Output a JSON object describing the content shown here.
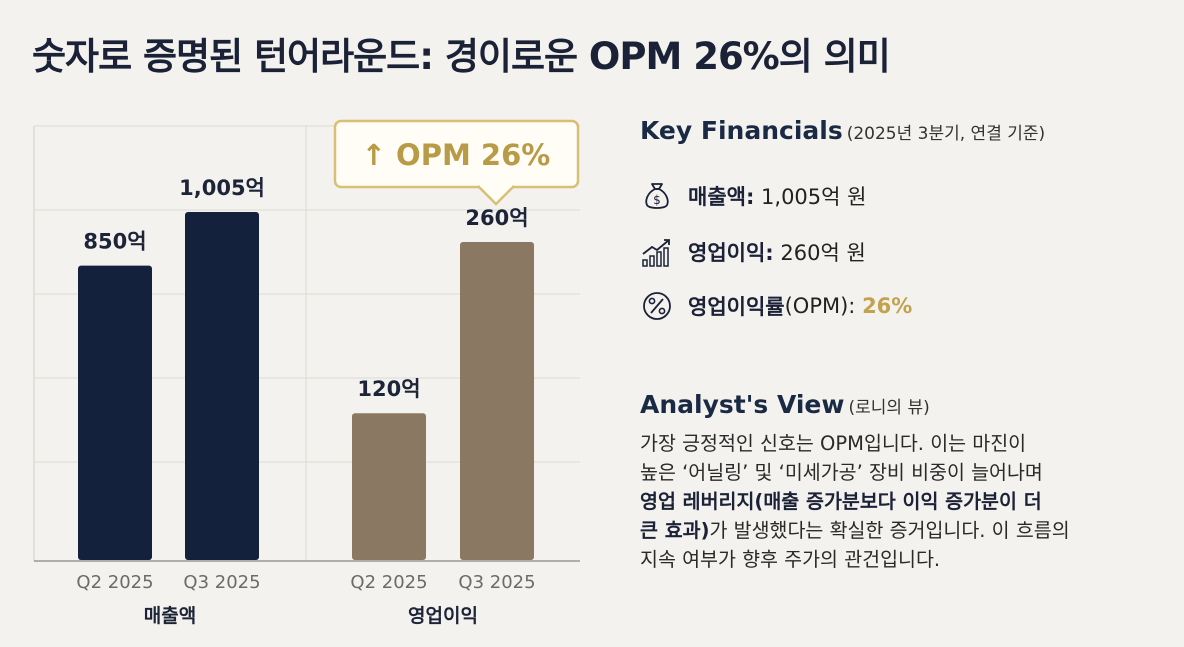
{
  "title": "숫자로 증명된 턴어라운드: 경이로운 OPM 26%의 의미",
  "callout": "↑ OPM 26%",
  "chart_data": [
    {
      "type": "bar",
      "group_label": "매출액",
      "categories": [
        "Q2 2025",
        "Q3 2025"
      ],
      "values": [
        850,
        1005
      ],
      "value_labels": [
        "850억",
        "1,005억"
      ],
      "unit": "억",
      "color": "#14213d"
    },
    {
      "type": "bar",
      "group_label": "영업이익",
      "categories": [
        "Q2 2025",
        "Q3 2025"
      ],
      "values": [
        120,
        260
      ],
      "value_labels": [
        "120억",
        "260억"
      ],
      "unit": "억",
      "color": "#8b7862"
    }
  ],
  "key_financials": {
    "title": "Key Financials",
    "subtitle": "(2025년 3분기, 연결 기준)",
    "items": [
      {
        "icon": "money-bag-icon",
        "label": "매출액:",
        "value": " 1,005억 원",
        "highlight": ""
      },
      {
        "icon": "growth-chart-icon",
        "label": "영업이익:",
        "value": " 260억 원",
        "highlight": ""
      },
      {
        "icon": "percent-icon",
        "label": "영업이익률",
        "value": "(OPM): ",
        "highlight": "26%"
      }
    ]
  },
  "analyst_view": {
    "title": "Analyst's View",
    "subtitle": "(로니의 뷰)",
    "line1": "가장 긍정적인 신호는 OPM입니다. 이는 마진이",
    "line2": "높은 ‘어닐링’ 및 ‘미세가공’ 장비 비중이 늘어나며",
    "line3_bold": "영업 레버리지(매출 증가분보다 이익 증가분이 더",
    "line4_bold": "큰 효과)",
    "line4_rest": "가 발생했다는 확실한 증거입니다. 이 흐름의",
    "line5": "지속 여부가 향후 주가의 관건입니다."
  },
  "colors": {
    "navy": "#14213d",
    "taupe": "#8b7862",
    "gold": "#c3a24e",
    "background": "#f3f2ee"
  }
}
